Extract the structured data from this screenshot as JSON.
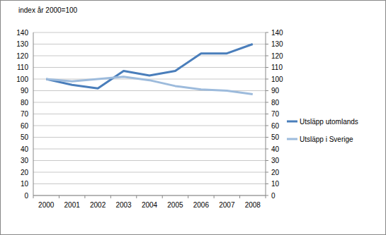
{
  "chart_data": {
    "type": "line",
    "title": "index år 2000=100",
    "categories": [
      "2000",
      "2001",
      "2002",
      "2003",
      "2004",
      "2005",
      "2006",
      "2007",
      "2008"
    ],
    "series": [
      {
        "name": "Utsläpp utomlands",
        "color": "#4a7ebb",
        "values": [
          100,
          95,
          92,
          107,
          103,
          107,
          122,
          122,
          130
        ]
      },
      {
        "name": "Utsläpp i Sverige",
        "color": "#9dbbdc",
        "values": [
          100,
          98,
          100,
          102,
          99,
          94,
          91,
          90,
          87
        ]
      }
    ],
    "ylim": [
      0,
      140
    ],
    "yticks": [
      0,
      10,
      20,
      30,
      40,
      50,
      60,
      70,
      80,
      90,
      100,
      110,
      120,
      130,
      140
    ],
    "y2lim": [
      0,
      140
    ],
    "y2ticks": [
      0,
      10,
      20,
      30,
      40,
      50,
      60,
      70,
      80,
      90,
      100,
      110,
      120,
      130,
      140
    ],
    "grid": true,
    "legend": "right"
  }
}
